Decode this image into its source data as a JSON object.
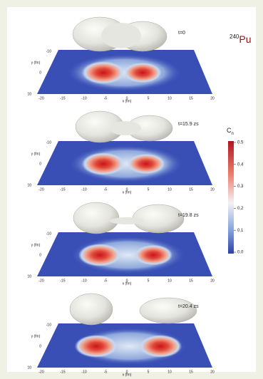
{
  "header": {
    "isotope_mass": "240",
    "isotope_symbol": "Pu"
  },
  "axes": {
    "x_label": "x (fm)",
    "y_label": "y (fm)",
    "x_ticks": [
      "-20",
      "-15",
      "-10",
      "-5",
      "0",
      "5",
      "10",
      "15",
      "20"
    ],
    "y_ticks": [
      "-10",
      "0",
      "10"
    ]
  },
  "panels": [
    {
      "time": "t=0"
    },
    {
      "time": "t=15.9 zs"
    },
    {
      "time": "t=19.8 zs"
    },
    {
      "time": "t=20.4 zs"
    }
  ],
  "colorbar": {
    "label": "C",
    "label_subscript": "n",
    "ticks": [
      "0.5",
      "0.4",
      "0.3",
      "0.2",
      "0.1",
      "0.0"
    ]
  }
}
